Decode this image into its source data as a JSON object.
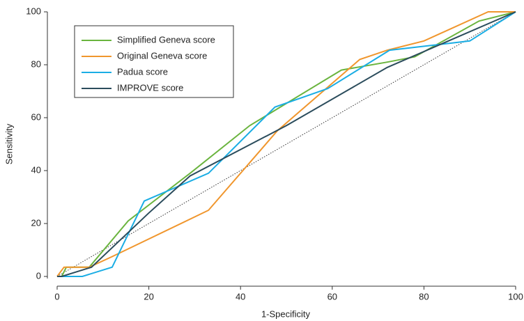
{
  "chart_data": {
    "type": "line",
    "x_label": "1-Specificity",
    "y_label": "Sensitivity",
    "xlim": [
      0,
      100
    ],
    "ylim": [
      0,
      100
    ],
    "xticks": [
      0,
      20,
      40,
      60,
      80,
      100
    ],
    "yticks": [
      0,
      20,
      40,
      60,
      80,
      100
    ],
    "legend": "upper left",
    "series": [
      {
        "name": "Simplified Geneva score",
        "color": "#6ab43e",
        "x": [
          0,
          1,
          2,
          7,
          15.5,
          29,
          42,
          62,
          72,
          78,
          92,
          100
        ],
        "values": [
          0,
          0,
          3.5,
          3.5,
          21,
          39,
          57,
          78,
          81,
          83,
          96.5,
          100
        ]
      },
      {
        "name": "Original Geneva score",
        "color": "#f0962d",
        "x": [
          0,
          1.5,
          7,
          12,
          33,
          48,
          66,
          72,
          80,
          94,
          100
        ],
        "values": [
          0,
          3.5,
          3.5,
          7.5,
          25,
          55,
          82,
          85.5,
          89,
          100,
          100
        ]
      },
      {
        "name": "Padua score",
        "color": "#1aade4",
        "x": [
          0,
          5.5,
          12,
          19,
          33,
          47.5,
          59,
          72.5,
          90,
          100
        ],
        "values": [
          0,
          0,
          3.5,
          28.5,
          39,
          64,
          71,
          85.5,
          89,
          100
        ]
      },
      {
        "name": "IMPROVE score",
        "color": "#2b4c5c",
        "x": [
          0,
          1,
          7.5,
          20,
          29,
          50,
          72,
          100
        ],
        "values": [
          0,
          0,
          3.5,
          24,
          38,
          57,
          79,
          100
        ]
      }
    ]
  }
}
